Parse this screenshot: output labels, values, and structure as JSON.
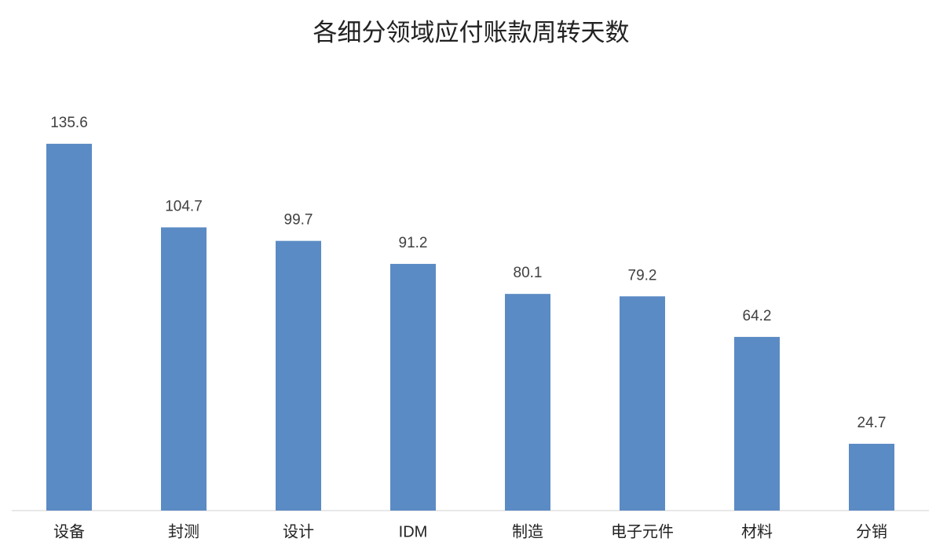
{
  "chart_data": {
    "type": "bar",
    "title": "各细分领域应付账款周转天数",
    "categories": [
      "设备",
      "封测",
      "设计",
      "IDM",
      "制造",
      "电子元件",
      "材料",
      "分销"
    ],
    "values": [
      135.6,
      104.7,
      99.7,
      91.2,
      80.1,
      79.2,
      64.2,
      24.7
    ],
    "color": "#5b8bc5",
    "ylim": [
      0,
      160
    ]
  }
}
